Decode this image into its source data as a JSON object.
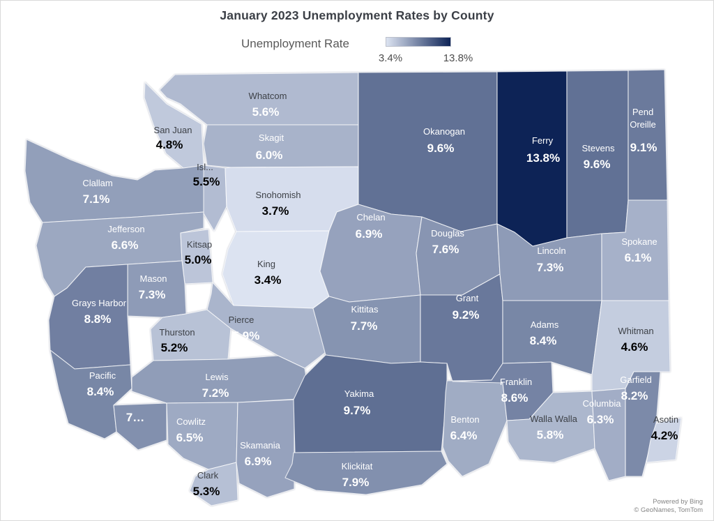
{
  "title": "January 2023 Unemployment Rates by County",
  "legend": {
    "label": "Unemployment Rate",
    "min_label": "3.4%",
    "max_label": "13.8%",
    "min_value": 3.4,
    "max_value": 13.8,
    "gradient_start": "#dce3f1",
    "gradient_end": "#0d2356"
  },
  "attribution": {
    "line1": "Powered by Bing",
    "line2": "© GeoNames, TomTom"
  },
  "colors": {
    "name_dark": "#3d4147",
    "name_light": "#ffffff",
    "value_dark": "#000000",
    "value_light": "#ffffff",
    "county_border": "rgba(255,255,255,0.78)"
  },
  "chart_data": {
    "type": "choropleth-map",
    "region": "Washington State counties",
    "title": "January 2023 Unemployment Rates by County",
    "metric": "Unemployment Rate",
    "unit": "%",
    "scale_min": 3.4,
    "scale_max": 13.8,
    "counties": [
      {
        "id": "whatcom",
        "name": "Whatcom",
        "value_label": "5.6%",
        "rate": 5.6,
        "fill": "#b0bad0",
        "name_tone": "dark",
        "value_tone": "light"
      },
      {
        "id": "sanjuan",
        "name": "San Juan",
        "value_label": "4.8%",
        "rate": 4.8,
        "fill": "#c0c9dc",
        "name_tone": "dark",
        "value_tone": "dark"
      },
      {
        "id": "skagit",
        "name": "Skagit",
        "value_label": "6.0%",
        "rate": 6.0,
        "fill": "#a8b3ca",
        "name_tone": "light",
        "value_tone": "light"
      },
      {
        "id": "island",
        "name": "Isl...",
        "value_label": "5.5%",
        "rate": 5.5,
        "fill": "#b2bcd2",
        "name_tone": "dark",
        "value_tone": "dark"
      },
      {
        "id": "snohomish",
        "name": "Snohomish",
        "value_label": "3.7%",
        "rate": 3.7,
        "fill": "#d6dded",
        "name_tone": "dark",
        "value_tone": "dark"
      },
      {
        "id": "clallam",
        "name": "Clallam",
        "value_label": "7.1%",
        "rate": 7.1,
        "fill": "#929fba",
        "name_tone": "light",
        "value_tone": "light"
      },
      {
        "id": "jefferson",
        "name": "Jefferson",
        "value_label": "6.6%",
        "rate": 6.6,
        "fill": "#9ca8c1",
        "name_tone": "light",
        "value_tone": "light"
      },
      {
        "id": "kitsap",
        "name": "Kitsap",
        "value_label": "5.0%",
        "rate": 5.0,
        "fill": "#bcc5d9",
        "name_tone": "dark",
        "value_tone": "dark"
      },
      {
        "id": "king",
        "name": "King",
        "value_label": "3.4%",
        "rate": 3.4,
        "fill": "#dce3f1",
        "name_tone": "dark",
        "value_tone": "dark"
      },
      {
        "id": "mason",
        "name": "Mason",
        "value_label": "7.3%",
        "rate": 7.3,
        "fill": "#8e9bb7",
        "name_tone": "light",
        "value_tone": "light"
      },
      {
        "id": "graysharbor",
        "name": "Grays Harbor",
        "value_label": "8.8%",
        "rate": 8.8,
        "fill": "#717fa1",
        "name_tone": "light",
        "value_tone": "light"
      },
      {
        "id": "thurston",
        "name": "Thurston",
        "value_label": "5.2%",
        "rate": 5.2,
        "fill": "#b8c2d6",
        "name_tone": "dark",
        "value_tone": "dark"
      },
      {
        "id": "pierce",
        "name": "Pierce",
        "value_label": "5.9%",
        "rate": 5.9,
        "fill": "#aab5cc",
        "name_tone": "dark",
        "value_tone": "light"
      },
      {
        "id": "pacific",
        "name": "Pacific",
        "value_label": "8.4%",
        "rate": 8.4,
        "fill": "#7887a6",
        "name_tone": "light",
        "value_tone": "light"
      },
      {
        "id": "wahkiakum",
        "name": "",
        "value_label": "7…",
        "rate": null,
        "fill": "#8290ae",
        "name_tone": "light",
        "value_tone": "light"
      },
      {
        "id": "lewis",
        "name": "Lewis",
        "value_label": "7.2%",
        "rate": 7.2,
        "fill": "#909db8",
        "name_tone": "light",
        "value_tone": "light"
      },
      {
        "id": "cowlitz",
        "name": "Cowlitz",
        "value_label": "6.5%",
        "rate": 6.5,
        "fill": "#9eaac3",
        "name_tone": "light",
        "value_tone": "light"
      },
      {
        "id": "clark",
        "name": "Clark",
        "value_label": "5.3%",
        "rate": 5.3,
        "fill": "#b6c0d5",
        "name_tone": "dark",
        "value_tone": "dark"
      },
      {
        "id": "skamania",
        "name": "Skamania",
        "value_label": "6.9%",
        "rate": 6.9,
        "fill": "#96a2bd",
        "name_tone": "light",
        "value_tone": "light"
      },
      {
        "id": "okanogan",
        "name": "Okanogan",
        "value_label": "9.6%",
        "rate": 9.6,
        "fill": "#617195",
        "name_tone": "light",
        "value_tone": "light"
      },
      {
        "id": "ferry",
        "name": "Ferry",
        "value_label": "13.8%",
        "rate": 13.8,
        "fill": "#0d2356",
        "name_tone": "light",
        "value_tone": "light"
      },
      {
        "id": "stevens",
        "name": "Stevens",
        "value_label": "9.6%",
        "rate": 9.6,
        "fill": "#617195",
        "name_tone": "light",
        "value_tone": "light"
      },
      {
        "id": "pendoreille",
        "name": "Pend Oreille",
        "value_label": "9.1%",
        "rate": 9.1,
        "fill": "#6b7a9c",
        "name_tone": "light",
        "value_tone": "light"
      },
      {
        "id": "chelan",
        "name": "Chelan",
        "value_label": "6.9%",
        "rate": 6.9,
        "fill": "#96a2bd",
        "name_tone": "light",
        "value_tone": "light"
      },
      {
        "id": "douglas",
        "name": "Douglas",
        "value_label": "7.6%",
        "rate": 7.6,
        "fill": "#8895b2",
        "name_tone": "light",
        "value_tone": "light"
      },
      {
        "id": "kittitas",
        "name": "Kittitas",
        "value_label": "7.7%",
        "rate": 7.7,
        "fill": "#8694b1",
        "name_tone": "light",
        "value_tone": "light"
      },
      {
        "id": "grant",
        "name": "Grant",
        "value_label": "9.2%",
        "rate": 9.2,
        "fill": "#69789b",
        "name_tone": "light",
        "value_tone": "light"
      },
      {
        "id": "lincoln",
        "name": "Lincoln",
        "value_label": "7.3%",
        "rate": 7.3,
        "fill": "#8e9bb7",
        "name_tone": "light",
        "value_tone": "light"
      },
      {
        "id": "spokane",
        "name": "Spokane",
        "value_label": "6.1%",
        "rate": 6.1,
        "fill": "#a6b1c9",
        "name_tone": "light",
        "value_tone": "light"
      },
      {
        "id": "adams",
        "name": "Adams",
        "value_label": "8.4%",
        "rate": 8.4,
        "fill": "#7887a6",
        "name_tone": "light",
        "value_tone": "light"
      },
      {
        "id": "whitman",
        "name": "Whitman",
        "value_label": "4.6%",
        "rate": 4.6,
        "fill": "#c4cddf",
        "name_tone": "dark",
        "value_tone": "dark"
      },
      {
        "id": "yakima",
        "name": "Yakima",
        "value_label": "9.7%",
        "rate": 9.7,
        "fill": "#5f6f93",
        "name_tone": "light",
        "value_tone": "light"
      },
      {
        "id": "klickitat",
        "name": "Klickitat",
        "value_label": "7.9%",
        "rate": 7.9,
        "fill": "#8290ae",
        "name_tone": "light",
        "value_tone": "light"
      },
      {
        "id": "benton",
        "name": "Benton",
        "value_label": "6.4%",
        "rate": 6.4,
        "fill": "#a0acc4",
        "name_tone": "light",
        "value_tone": "light"
      },
      {
        "id": "franklin",
        "name": "Franklin",
        "value_label": "8.6%",
        "rate": 8.6,
        "fill": "#7583a4",
        "name_tone": "light",
        "value_tone": "light"
      },
      {
        "id": "wallawalla",
        "name": "Walla Walla",
        "value_label": "5.8%",
        "rate": 5.8,
        "fill": "#acb7cd",
        "name_tone": "dark",
        "value_tone": "light"
      },
      {
        "id": "columbia",
        "name": "Columbia",
        "value_label": "6.3%",
        "rate": 6.3,
        "fill": "#a2adc6",
        "name_tone": "light",
        "value_tone": "light"
      },
      {
        "id": "garfield",
        "name": "Garfield",
        "value_label": "8.2%",
        "rate": 8.2,
        "fill": "#7c8aa9",
        "name_tone": "light",
        "value_tone": "light"
      },
      {
        "id": "asotin",
        "name": "Asotin",
        "value_label": "4.2%",
        "rate": 4.2,
        "fill": "#ccd4e5",
        "name_tone": "dark",
        "value_tone": "dark"
      }
    ]
  }
}
